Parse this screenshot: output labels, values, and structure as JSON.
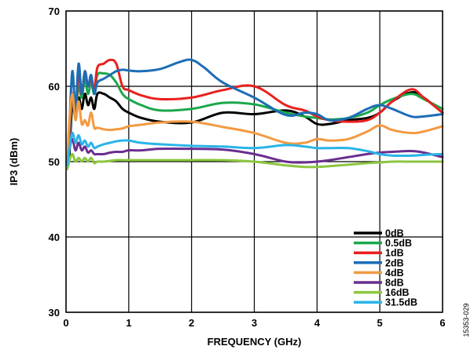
{
  "chart_data": {
    "type": "line",
    "xlabel": "FREQUENCY (GHz)",
    "ylabel": "IP3 (dBm)",
    "xlim": [
      0,
      6
    ],
    "ylim": [
      30,
      70
    ],
    "xticks": [
      0,
      1,
      2,
      3,
      4,
      5,
      6
    ],
    "yticks": [
      30,
      40,
      50,
      60,
      70
    ],
    "grid": true,
    "legend_position": "bottom-right",
    "figure_id": "15353-029",
    "series": [
      {
        "name": "0dB",
        "color": "#000000",
        "x": [
          0.02,
          0.05,
          0.1,
          0.15,
          0.2,
          0.25,
          0.3,
          0.35,
          0.4,
          0.45,
          0.5,
          0.6,
          0.7,
          0.8,
          0.9,
          1.0,
          1.2,
          1.5,
          2.0,
          2.5,
          3.0,
          3.5,
          3.8,
          4.0,
          4.2,
          4.5,
          4.8,
          5.0,
          5.2,
          5.5,
          5.7,
          6.0
        ],
        "y": [
          49.5,
          50.5,
          57.5,
          56.0,
          58.5,
          57.0,
          59.0,
          57.5,
          58.5,
          57.0,
          59.0,
          59.0,
          58.5,
          58.0,
          57.0,
          56.5,
          55.8,
          55.3,
          55.2,
          56.5,
          56.3,
          56.8,
          56.0,
          55.0,
          55.0,
          55.5,
          55.8,
          56.5,
          58.0,
          59.2,
          58.5,
          56.5
        ]
      },
      {
        "name": "0.5dB",
        "color": "#1aa84b",
        "x": [
          0.02,
          0.05,
          0.1,
          0.15,
          0.2,
          0.25,
          0.3,
          0.35,
          0.4,
          0.45,
          0.5,
          0.6,
          0.7,
          0.8,
          0.9,
          1.0,
          1.2,
          1.5,
          2.0,
          2.5,
          3.0,
          3.5,
          3.8,
          4.0,
          4.2,
          4.5,
          4.8,
          5.0,
          5.2,
          5.5,
          5.7,
          6.0
        ],
        "y": [
          50.0,
          52.0,
          58.5,
          56.5,
          60.0,
          58.5,
          61.0,
          59.0,
          60.5,
          59.0,
          61.5,
          61.7,
          61.5,
          60.5,
          59.0,
          58.3,
          57.5,
          56.8,
          57.0,
          57.8,
          57.6,
          56.5,
          56.0,
          55.8,
          55.6,
          55.8,
          56.5,
          57.5,
          58.3,
          59.0,
          58.3,
          57.0
        ]
      },
      {
        "name": "1dB",
        "color": "#e8201e",
        "x": [
          0.02,
          0.05,
          0.1,
          0.15,
          0.2,
          0.25,
          0.3,
          0.35,
          0.4,
          0.45,
          0.5,
          0.6,
          0.7,
          0.8,
          0.9,
          1.0,
          1.2,
          1.5,
          2.0,
          2.5,
          3.0,
          3.5,
          3.8,
          4.0,
          4.2,
          4.5,
          4.8,
          5.0,
          5.2,
          5.5,
          5.7,
          6.0
        ],
        "y": [
          50.0,
          53.0,
          59.0,
          56.5,
          61.5,
          59.0,
          62.0,
          60.0,
          61.0,
          59.5,
          62.5,
          63.0,
          63.5,
          63.0,
          60.0,
          59.5,
          58.8,
          58.3,
          58.5,
          59.5,
          60.0,
          57.5,
          56.8,
          56.0,
          55.5,
          55.3,
          55.5,
          56.5,
          58.0,
          59.6,
          58.5,
          56.5
        ]
      },
      {
        "name": "2dB",
        "color": "#1c6db5",
        "x": [
          0.02,
          0.05,
          0.1,
          0.15,
          0.2,
          0.25,
          0.3,
          0.35,
          0.4,
          0.45,
          0.5,
          0.6,
          0.7,
          0.8,
          0.9,
          1.0,
          1.2,
          1.5,
          1.8,
          2.0,
          2.2,
          2.5,
          3.0,
          3.5,
          3.8,
          4.0,
          4.2,
          4.5,
          4.8,
          5.0,
          5.2,
          5.5,
          5.7,
          6.0
        ],
        "y": [
          50.0,
          54.0,
          62.0,
          57.0,
          63.0,
          59.0,
          62.0,
          60.0,
          61.5,
          59.0,
          60.5,
          61.0,
          61.5,
          62.0,
          62.2,
          62.1,
          62.0,
          62.3,
          63.2,
          63.5,
          62.5,
          60.5,
          58.5,
          56.2,
          56.5,
          56.3,
          55.5,
          55.8,
          57.0,
          57.5,
          57.0,
          56.0,
          56.0,
          56.3
        ]
      },
      {
        "name": "4dB",
        "color": "#f39a40",
        "x": [
          0.02,
          0.05,
          0.1,
          0.15,
          0.2,
          0.25,
          0.3,
          0.35,
          0.4,
          0.45,
          0.5,
          0.6,
          0.7,
          0.8,
          0.9,
          1.0,
          1.2,
          1.5,
          2.0,
          2.5,
          3.0,
          3.5,
          3.8,
          4.0,
          4.2,
          4.5,
          4.8,
          5.0,
          5.2,
          5.5,
          5.7,
          6.0
        ],
        "y": [
          50.0,
          55.0,
          59.0,
          55.5,
          58.0,
          55.0,
          55.5,
          54.8,
          56.5,
          54.5,
          54.5,
          54.3,
          54.2,
          54.3,
          54.4,
          54.7,
          54.9,
          55.2,
          55.3,
          54.6,
          53.8,
          52.5,
          52.5,
          53.0,
          52.8,
          53.0,
          54.0,
          54.8,
          54.2,
          53.8,
          54.0,
          54.7
        ]
      },
      {
        "name": "8dB",
        "color": "#6a2e8f",
        "x": [
          0.02,
          0.05,
          0.1,
          0.15,
          0.2,
          0.25,
          0.3,
          0.35,
          0.4,
          0.45,
          0.5,
          0.6,
          0.7,
          0.8,
          0.9,
          1.0,
          1.2,
          1.5,
          2.0,
          2.5,
          3.0,
          3.5,
          3.8,
          4.0,
          4.2,
          4.5,
          4.8,
          5.0,
          5.2,
          5.5,
          5.7,
          6.0
        ],
        "y": [
          49.5,
          51.5,
          53.0,
          51.5,
          52.5,
          51.5,
          52.0,
          51.2,
          51.5,
          51.0,
          51.0,
          51.0,
          51.2,
          51.3,
          51.3,
          51.5,
          51.5,
          51.7,
          51.7,
          51.6,
          51.0,
          50.0,
          49.9,
          50.0,
          50.2,
          50.6,
          51.0,
          51.2,
          51.3,
          51.4,
          51.2,
          50.6
        ]
      },
      {
        "name": "16dB",
        "color": "#8cc63f",
        "x": [
          0.02,
          0.05,
          0.1,
          0.15,
          0.2,
          0.25,
          0.3,
          0.35,
          0.4,
          0.45,
          0.5,
          0.6,
          0.7,
          0.8,
          0.9,
          1.0,
          1.5,
          2.0,
          2.5,
          3.0,
          3.5,
          3.8,
          4.0,
          4.2,
          4.5,
          4.8,
          5.0,
          5.2,
          5.5,
          5.7,
          6.0
        ],
        "y": [
          49.0,
          50.0,
          51.0,
          50.0,
          50.5,
          50.0,
          50.5,
          50.0,
          50.5,
          49.8,
          50.0,
          50.0,
          50.1,
          50.2,
          50.2,
          50.2,
          50.2,
          50.2,
          50.2,
          50.0,
          49.5,
          49.3,
          49.3,
          49.4,
          49.6,
          49.8,
          49.9,
          50.0,
          50.0,
          50.0,
          50.0
        ]
      },
      {
        "name": "31.5dB",
        "color": "#2ab4e8",
        "x": [
          0.02,
          0.05,
          0.1,
          0.15,
          0.2,
          0.25,
          0.3,
          0.35,
          0.4,
          0.45,
          0.5,
          0.6,
          0.7,
          0.8,
          0.9,
          1.0,
          1.2,
          1.5,
          2.0,
          2.5,
          3.0,
          3.5,
          3.8,
          4.0,
          4.2,
          4.5,
          4.8,
          5.0,
          5.2,
          5.5,
          5.7,
          6.0
        ],
        "y": [
          49.5,
          51.5,
          53.8,
          52.5,
          53.5,
          52.3,
          52.8,
          52.0,
          52.5,
          51.8,
          52.0,
          52.3,
          52.5,
          52.7,
          52.8,
          52.8,
          52.5,
          52.3,
          52.1,
          52.0,
          51.8,
          52.2,
          52.0,
          51.8,
          51.8,
          51.8,
          51.4,
          51.0,
          50.8,
          50.8,
          50.9,
          51.0
        ]
      }
    ]
  }
}
